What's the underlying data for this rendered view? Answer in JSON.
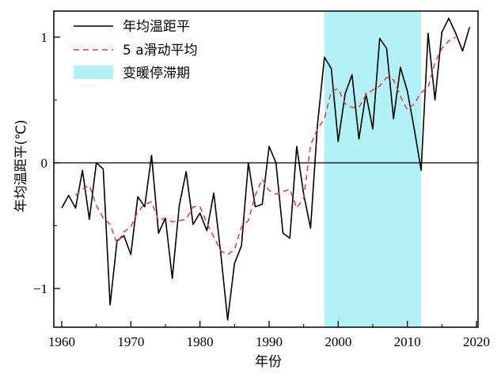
{
  "chart_data": {
    "type": "line",
    "title": "",
    "xlabel": "年份",
    "ylabel": "年均温距平(℃)",
    "xlim": [
      1960,
      2020
    ],
    "ylim": [
      -1.3,
      1.22
    ],
    "x_ticks": [
      1960,
      1970,
      1980,
      1990,
      2000,
      2010,
      2020
    ],
    "x_tick_labels": [
      "1960",
      "1970",
      "1980",
      "1990",
      "2000",
      "2010",
      "2020"
    ],
    "y_ticks": [
      -1,
      0,
      1
    ],
    "y_tick_labels": [
      "−1",
      "0",
      "1"
    ],
    "grid": false,
    "zero_line": true,
    "legend_position": "top-left",
    "shaded_region": {
      "label": "变暖停滞期",
      "x_start": 1998,
      "x_end": 2012,
      "color": "#b2f1f6"
    },
    "series": [
      {
        "name": "年均温距平",
        "color": "#000000",
        "style": "solid",
        "x": [
          1960,
          1961,
          1962,
          1963,
          1964,
          1965,
          1966,
          1967,
          1968,
          1969,
          1970,
          1971,
          1972,
          1973,
          1974,
          1975,
          1976,
          1977,
          1978,
          1979,
          1980,
          1981,
          1982,
          1983,
          1984,
          1985,
          1986,
          1987,
          1988,
          1989,
          1990,
          1991,
          1992,
          1993,
          1994,
          1995,
          1996,
          1997,
          1998,
          1999,
          2000,
          2001,
          2002,
          2003,
          2004,
          2005,
          2006,
          2007,
          2008,
          2009,
          2010,
          2011,
          2012,
          2013,
          2014,
          2015,
          2016,
          2017,
          2018,
          2019
        ],
        "y": [
          -0.36,
          -0.26,
          -0.36,
          -0.06,
          -0.45,
          0.0,
          -0.05,
          -1.13,
          -0.62,
          -0.58,
          -0.73,
          -0.27,
          -0.35,
          0.06,
          -0.56,
          -0.44,
          -0.92,
          -0.34,
          -0.07,
          -0.49,
          -0.4,
          -0.54,
          -0.24,
          -0.72,
          -1.25,
          -0.8,
          -0.66,
          0.0,
          -0.35,
          -0.33,
          0.13,
          0.0,
          -0.56,
          -0.6,
          0.13,
          -0.25,
          -0.52,
          0.3,
          0.84,
          0.75,
          0.17,
          0.55,
          0.7,
          0.19,
          0.55,
          0.27,
          0.99,
          0.91,
          0.35,
          0.76,
          0.57,
          0.27,
          -0.06,
          1.03,
          0.5,
          1.04,
          1.15,
          1.03,
          0.89,
          1.08
        ]
      },
      {
        "name": "5 a滑动平均",
        "color": "#e8393f",
        "style": "dashed",
        "x": [
          1962,
          1963,
          1964,
          1965,
          1966,
          1967,
          1968,
          1969,
          1970,
          1971,
          1972,
          1973,
          1974,
          1975,
          1976,
          1977,
          1978,
          1979,
          1980,
          1981,
          1982,
          1983,
          1984,
          1985,
          1986,
          1987,
          1988,
          1989,
          1990,
          1991,
          1992,
          1993,
          1994,
          1995,
          1996,
          1997,
          1998,
          1999,
          2000,
          2001,
          2002,
          2003,
          2004,
          2005,
          2006,
          2007,
          2008,
          2009,
          2010,
          2011,
          2012,
          2013,
          2014,
          2015,
          2016,
          2017
        ],
        "y": [
          -0.26,
          -0.21,
          -0.18,
          -0.34,
          -0.44,
          -0.49,
          -0.64,
          -0.55,
          -0.51,
          -0.39,
          -0.33,
          -0.31,
          -0.46,
          -0.44,
          -0.47,
          -0.46,
          -0.45,
          -0.35,
          -0.35,
          -0.48,
          -0.59,
          -0.7,
          -0.73,
          -0.69,
          -0.51,
          -0.46,
          -0.26,
          -0.13,
          -0.22,
          -0.25,
          -0.23,
          -0.21,
          -0.36,
          -0.28,
          0.14,
          0.27,
          0.35,
          0.57,
          0.59,
          0.47,
          0.44,
          0.44,
          0.54,
          0.58,
          0.61,
          0.68,
          0.66,
          0.53,
          0.42,
          0.47,
          0.56,
          0.6,
          0.8,
          0.91,
          0.97,
          1.0
        ]
      }
    ]
  }
}
